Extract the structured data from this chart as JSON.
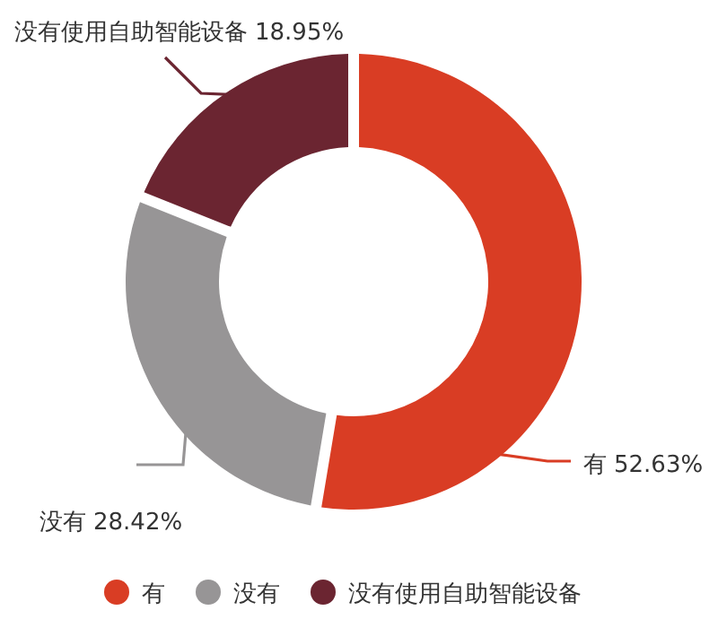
{
  "chart_data": {
    "type": "donut",
    "categories": [
      "有",
      "没有",
      "没有使用自助智能设备"
    ],
    "values": [
      52.63,
      28.42,
      18.95
    ],
    "value_labels": [
      "52.63%",
      "28.42%",
      "18.95%"
    ],
    "colors": [
      "#d93d24",
      "#979596",
      "#6b2531"
    ],
    "legend": "bottom"
  }
}
